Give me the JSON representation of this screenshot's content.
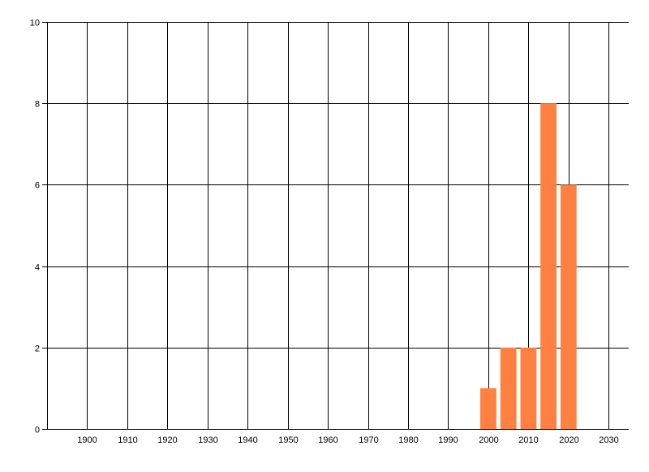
{
  "chart_data": {
    "type": "bar",
    "title": "",
    "xlabel": "",
    "ylabel": "",
    "x": [
      2000,
      2005,
      2010,
      2015,
      2020
    ],
    "values": [
      1,
      2,
      2,
      8,
      6
    ],
    "xlim": [
      1890,
      2035
    ],
    "ylim": [
      0,
      10
    ],
    "xticks": [
      1900,
      1910,
      1920,
      1930,
      1940,
      1950,
      1960,
      1970,
      1980,
      1990,
      2000,
      2010,
      2020,
      2030
    ],
    "yticks": [
      0,
      2,
      4,
      6,
      8,
      10
    ],
    "bar_width_years": 4,
    "grid": true,
    "legend": "none",
    "colors": {
      "bar": "#FF8040",
      "grid": "#000000",
      "text": "#000000"
    }
  }
}
